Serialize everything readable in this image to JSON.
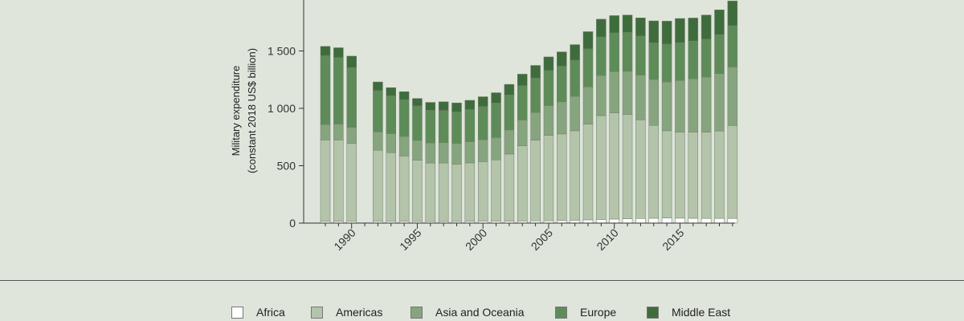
{
  "chart_data": {
    "type": "bar",
    "stacked": true,
    "title": "",
    "xlabel": "",
    "ylabel_line1": "Military expenditure",
    "ylabel_line2": "(constant 2018 US$ billion)",
    "ylim": [
      0,
      2000
    ],
    "yticks": [
      0,
      500,
      1000,
      1500
    ],
    "ytick_labels": [
      "0",
      "500",
      "1 000",
      "1 500"
    ],
    "xtick_labels": [
      "1990",
      "1995",
      "2000",
      "2005",
      "2010",
      "2015"
    ],
    "xtick_years": [
      1990,
      1995,
      2000,
      2005,
      2010,
      2015
    ],
    "categories": [
      1988,
      1989,
      1990,
      1992,
      1993,
      1994,
      1995,
      1996,
      1997,
      1998,
      1999,
      2000,
      2001,
      2002,
      2003,
      2004,
      2005,
      2006,
      2007,
      2008,
      2009,
      2010,
      2011,
      2012,
      2013,
      2014,
      2015,
      2016,
      2017,
      2018,
      2019
    ],
    "series": [
      {
        "name": "Africa",
        "color": "#ffffff",
        "values": [
          15,
          15,
          15,
          15,
          15,
          15,
          14,
          14,
          14,
          14,
          15,
          16,
          16,
          17,
          18,
          19,
          20,
          22,
          25,
          28,
          32,
          35,
          38,
          40,
          42,
          45,
          43,
          42,
          41,
          41,
          41
        ]
      },
      {
        "name": "Americas",
        "color": "#b3c4aa",
        "values": [
          710,
          710,
          680,
          620,
          600,
          570,
          535,
          510,
          510,
          500,
          510,
          520,
          535,
          585,
          655,
          705,
          745,
          755,
          780,
          835,
          905,
          925,
          910,
          860,
          810,
          760,
          750,
          750,
          752,
          762,
          810
        ]
      },
      {
        "name": "Asia and Oceania",
        "color": "#86a57f",
        "values": [
          135,
          138,
          140,
          160,
          165,
          170,
          172,
          175,
          178,
          180,
          185,
          190,
          195,
          210,
          225,
          240,
          260,
          280,
          300,
          325,
          350,
          360,
          375,
          390,
          400,
          425,
          450,
          465,
          480,
          500,
          510
        ]
      },
      {
        "name": "Europe",
        "color": "#5e8c59",
        "values": [
          600,
          580,
          520,
          360,
          330,
          320,
          300,
          285,
          280,
          275,
          280,
          290,
          300,
          305,
          300,
          300,
          305,
          310,
          315,
          330,
          335,
          338,
          340,
          340,
          320,
          330,
          330,
          330,
          330,
          340,
          360
        ]
      },
      {
        "name": "Middle East",
        "color": "#3f6c3c",
        "values": [
          80,
          85,
          100,
          75,
          70,
          70,
          65,
          68,
          75,
          78,
          80,
          85,
          90,
          92,
          100,
          110,
          118,
          125,
          135,
          150,
          155,
          150,
          150,
          158,
          190,
          200,
          210,
          200,
          210,
          215,
          215
        ]
      }
    ],
    "legend_position": "bottom"
  },
  "legend": {
    "items": [
      {
        "label": "Africa",
        "color": "#ffffff"
      },
      {
        "label": "Americas",
        "color": "#b3c4aa"
      },
      {
        "label": "Asia and Oceania",
        "color": "#86a57f"
      },
      {
        "label": "Europe",
        "color": "#5e8c59"
      },
      {
        "label": "Middle East",
        "color": "#3f6c3c"
      }
    ]
  }
}
